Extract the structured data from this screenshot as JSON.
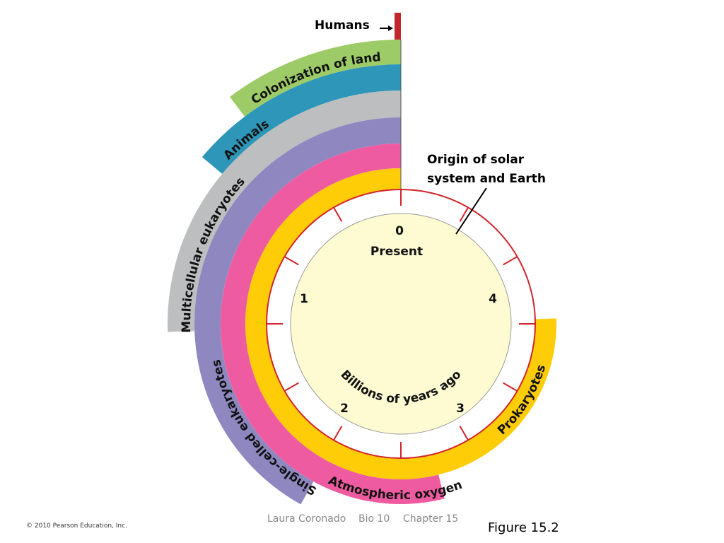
{
  "humans": "Humans",
  "origin": [
    "Origin of solar",
    "system and Earth"
  ],
  "bands": [
    {
      "label": "Colonization of land"
    },
    {
      "label": "Animals"
    },
    {
      "label": "Multicellular eukaryotes"
    },
    {
      "label": "Single-celled eukaryotes"
    },
    {
      "label": "Atmospheric oxygen"
    },
    {
      "label": "Prokaryotes"
    }
  ],
  "clock": {
    "present": "Present",
    "ticks": [
      "0",
      "1",
      "2",
      "3",
      "4"
    ],
    "unit": "Billions of years ago"
  },
  "footer": {
    "copyright": "© 2010 Pearson Education, Inc.",
    "credit": [
      "Laura Coronado",
      "Bio 10",
      "Chapter 15"
    ],
    "figure": "Figure 15.2"
  }
}
